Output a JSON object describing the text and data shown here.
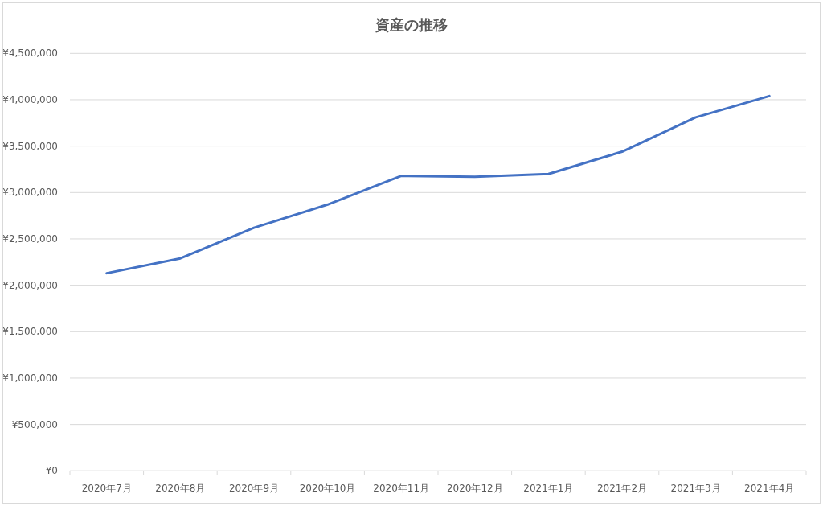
{
  "chart_data": {
    "type": "line",
    "title": "資産の推移",
    "categories": [
      "2020年7月",
      "2020年8月",
      "2020年9月",
      "2020年10月",
      "2020年11月",
      "2020年12月",
      "2021年1月",
      "2021年2月",
      "2021年3月",
      "2021年4月"
    ],
    "series": [
      {
        "color": "#4472c4",
        "values": [
          2130000,
          2290000,
          2620000,
          2870000,
          3180000,
          3170000,
          3200000,
          3440000,
          3810000,
          4040000
        ]
      }
    ],
    "ylim": [
      0,
      4500000
    ],
    "yticks": [
      {
        "value": 0,
        "label": "¥0"
      },
      {
        "value": 500000,
        "label": "¥500,000"
      },
      {
        "value": 1000000,
        "label": "¥1,000,000"
      },
      {
        "value": 1500000,
        "label": "¥1,500,000"
      },
      {
        "value": 2000000,
        "label": "¥2,000,000"
      },
      {
        "value": 2500000,
        "label": "¥2,500,000"
      },
      {
        "value": 3000000,
        "label": "¥3,000,000"
      },
      {
        "value": 3500000,
        "label": "¥3,500,000"
      },
      {
        "value": 4000000,
        "label": "¥4,000,000"
      },
      {
        "value": 4500000,
        "label": "¥4,500,000"
      }
    ],
    "grid": "y",
    "line_style": "solid"
  }
}
